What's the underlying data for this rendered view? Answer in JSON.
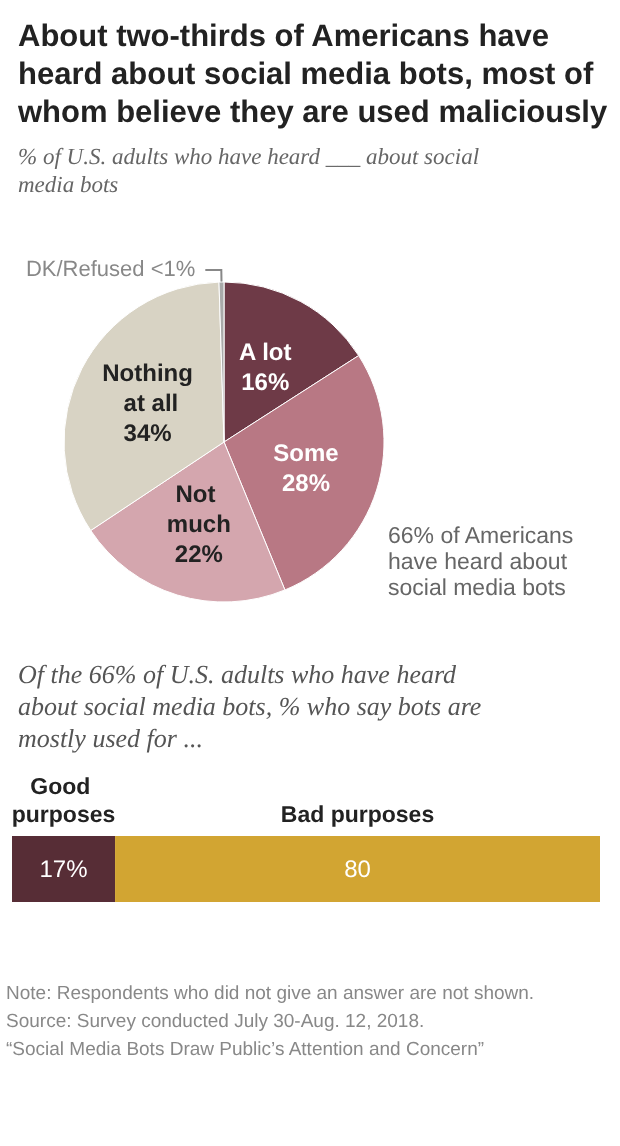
{
  "chart_data": [
    {
      "type": "pie",
      "title": "About two-thirds of Americans have heard about social media bots, most of whom believe they are used maliciously",
      "subtitle": "% of U.S. adults who have heard ___ about social media bots",
      "categories": [
        "A lot",
        "Some",
        "Not much",
        "Nothing at all",
        "DK/Refused"
      ],
      "values": [
        16,
        28,
        22,
        34,
        0.5
      ],
      "colors": [
        "#6e3a47",
        "#b87884",
        "#d4a6ae",
        "#d8d3c4",
        "#a9a9a9"
      ],
      "value_labels": [
        "16%",
        "28%",
        "22%",
        "34%",
        "<1%"
      ],
      "annotations": [
        "66% of Americans have heard about social media bots"
      ]
    },
    {
      "type": "bar",
      "orientation": "horizontal",
      "stacked": true,
      "title": "Of the 66% of U.S. adults who have heard about social media bots, % who say bots are mostly used for ...",
      "categories": [
        null
      ],
      "series": [
        {
          "name": "Good purposes",
          "color": "#572d36",
          "values": [
            17
          ],
          "value_labels": [
            "17%"
          ]
        },
        {
          "name": "Bad purposes",
          "color": "#d2a532",
          "values": [
            80
          ],
          "value_labels": [
            "80"
          ]
        }
      ],
      "annotations": [
        "Note: Respondents who did not give an answer are not shown.",
        "Source: Survey conducted July 30-Aug. 12, 2018.",
        "“Social Media Bots Draw Public’s Attention and Concern”"
      ]
    }
  ]
}
